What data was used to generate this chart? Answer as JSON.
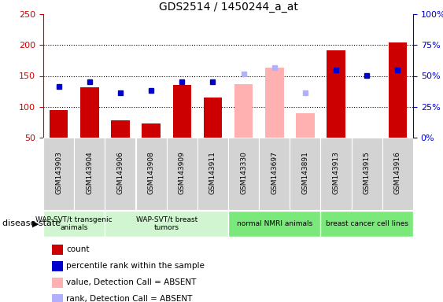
{
  "title": "GDS2514 / 1450244_a_at",
  "samples": [
    "GSM143903",
    "GSM143904",
    "GSM143906",
    "GSM143908",
    "GSM143909",
    "GSM143911",
    "GSM143330",
    "GSM143697",
    "GSM143891",
    "GSM143913",
    "GSM143915",
    "GSM143916"
  ],
  "count_values": [
    95,
    131,
    78,
    73,
    135,
    115,
    null,
    null,
    null,
    191,
    null,
    204
  ],
  "count_absent_values": [
    null,
    null,
    null,
    null,
    null,
    null,
    136,
    163,
    90,
    null,
    null,
    null
  ],
  "percentile_values": [
    133,
    141,
    123,
    126,
    141,
    141,
    null,
    null,
    null,
    160,
    151,
    160
  ],
  "percentile_absent_values": [
    null,
    null,
    null,
    null,
    null,
    null,
    153,
    163,
    122,
    null,
    null,
    null
  ],
  "ylim": [
    50,
    250
  ],
  "yticks": [
    50,
    100,
    150,
    200,
    250
  ],
  "y2ticks": [
    0,
    25,
    50,
    75,
    100
  ],
  "y2ticklabels": [
    "0%",
    "25%",
    "50%",
    "75%",
    "100%"
  ],
  "group_defs": [
    {
      "label": "WAP-SVT/t transgenic\nanimals",
      "indices": [
        0,
        1
      ],
      "color": "#d0f5d0"
    },
    {
      "label": "WAP-SVT/t breast\ntumors",
      "indices": [
        2,
        3,
        4,
        5
      ],
      "color": "#d0f5d0"
    },
    {
      "label": "normal NMRI animals",
      "indices": [
        6,
        7,
        8
      ],
      "color": "#7be87b"
    },
    {
      "label": "breast cancer cell lines",
      "indices": [
        9,
        10,
        11
      ],
      "color": "#7be87b"
    }
  ],
  "bar_color": "#cc0000",
  "bar_absent_color": "#ffb0b0",
  "dot_color": "#0000cc",
  "dot_absent_color": "#b0b0ff",
  "tick_color_left": "#cc0000",
  "tick_color_right": "#0000cc",
  "sample_bg_color": "#d3d3d3",
  "disease_state_label": "disease state",
  "legend_items": [
    {
      "label": "count",
      "color": "#cc0000",
      "marker": "s"
    },
    {
      "label": "percentile rank within the sample",
      "color": "#0000cc",
      "marker": "s"
    },
    {
      "label": "value, Detection Call = ABSENT",
      "color": "#ffb0b0",
      "marker": "s"
    },
    {
      "label": "rank, Detection Call = ABSENT",
      "color": "#b0b0ff",
      "marker": "s"
    }
  ]
}
